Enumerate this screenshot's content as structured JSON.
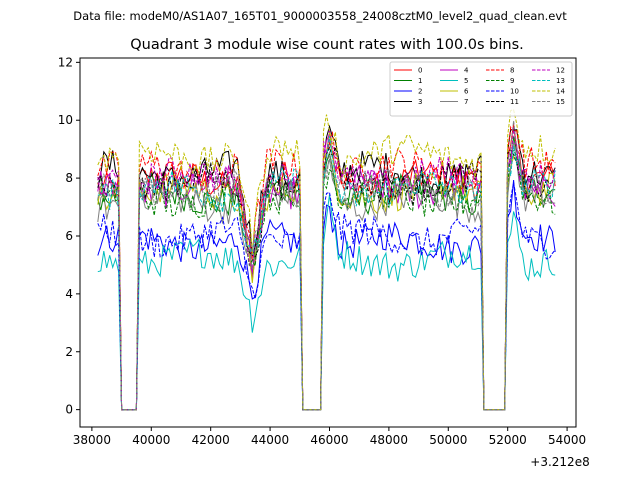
{
  "header": {
    "data_file": "Data file: modeM0/AS1A07_165T01_9000003558_24008cztM0_level2_quad_clean.evt"
  },
  "chart_data": {
    "type": "line",
    "title": "Quadrant 3 module wise count rates with 100.0s bins.",
    "xlabel": "",
    "ylabel": "",
    "x_offset_label": "+3.212e8",
    "xlim": [
      37600,
      54300
    ],
    "ylim": [
      -0.6,
      12.15
    ],
    "xticks": [
      38000,
      40000,
      42000,
      44000,
      46000,
      48000,
      50000,
      52000,
      54000
    ],
    "xtick_labels": [
      "38000",
      "40000",
      "42000",
      "44000",
      "46000",
      "48000",
      "50000",
      "52000",
      "54000"
    ],
    "yticks": [
      0,
      2,
      4,
      6,
      8,
      10,
      12
    ],
    "ytick_labels": [
      "0",
      "2",
      "4",
      "6",
      "8",
      "10",
      "12"
    ],
    "grid": false,
    "legend_position": "top-right",
    "legend_columns": 4,
    "time_range": [
      38200,
      53600
    ],
    "bin_width": 100,
    "gaps": [
      [
        39000,
        39500
      ],
      [
        45100,
        45700
      ],
      [
        51200,
        51900
      ]
    ],
    "dips": [
      [
        43400,
        2.6
      ]
    ],
    "spikes": [
      [
        46000,
        1.5
      ],
      [
        52200,
        1.6
      ]
    ],
    "series": [
      {
        "name": "0",
        "color": "#ff0000",
        "dash": false,
        "mean": 7.9
      },
      {
        "name": "1",
        "color": "#008000",
        "dash": false,
        "mean": 7.4
      },
      {
        "name": "2",
        "color": "#0000ff",
        "dash": false,
        "mean": 5.8
      },
      {
        "name": "3",
        "color": "#000000",
        "dash": false,
        "mean": 8.2
      },
      {
        "name": "4",
        "color": "#bf00bf",
        "dash": false,
        "mean": 7.7
      },
      {
        "name": "5",
        "color": "#00bfbf",
        "dash": false,
        "mean": 5.2
      },
      {
        "name": "6",
        "color": "#bfbf00",
        "dash": false,
        "mean": 7.5
      },
      {
        "name": "7",
        "color": "#808080",
        "dash": false,
        "mean": 7.2
      },
      {
        "name": "8",
        "color": "#ff0000",
        "dash": true,
        "mean": 8.3
      },
      {
        "name": "9",
        "color": "#008000",
        "dash": true,
        "mean": 7.3
      },
      {
        "name": "10",
        "color": "#0000ff",
        "dash": true,
        "mean": 6.0
      },
      {
        "name": "11",
        "color": "#000000",
        "dash": true,
        "mean": 7.8
      },
      {
        "name": "12",
        "color": "#bf00bf",
        "dash": true,
        "mean": 8.0
      },
      {
        "name": "13",
        "color": "#00bfbf",
        "dash": true,
        "mean": 7.6
      },
      {
        "name": "14",
        "color": "#bfbf00",
        "dash": true,
        "mean": 8.8
      },
      {
        "name": "15",
        "color": "#808080",
        "dash": true,
        "mean": 7.6
      }
    ]
  }
}
